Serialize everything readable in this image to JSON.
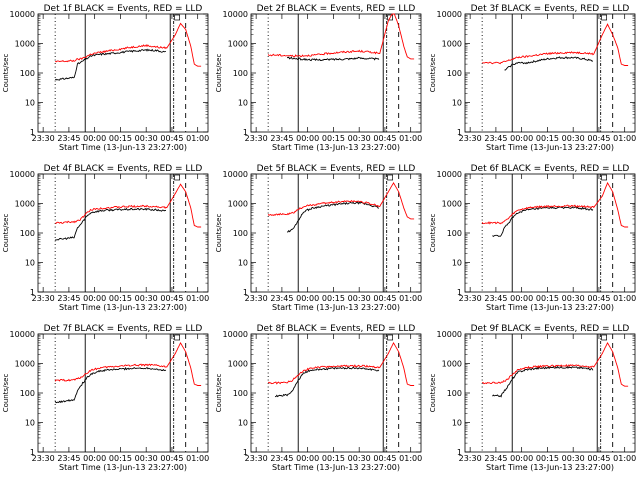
{
  "xlabel": "Start Time (13-Jun-13 23:27:00)",
  "ylabel": "Counts/sec",
  "x_ticks": [
    "23:30",
    "23:45",
    "00:00",
    "00:15",
    "00:30",
    "00:45",
    "01:00"
  ],
  "y_ticks": [
    "1",
    "10",
    "100",
    "1000",
    "10000"
  ],
  "colors": {
    "events": "#000000",
    "lld": "#ff0000"
  },
  "chart_data": [
    {
      "type": "line",
      "title": "Det 1f BLACK = Events, RED = LLD",
      "xlabel": "Start Time (13-Jun-13 23:27:00)",
      "ylabel": "Counts/sec",
      "y_scale": "log",
      "ylim": [
        1,
        10000
      ],
      "xlim": [
        "23:27",
        "01:06"
      ],
      "x": [
        "23:37",
        "23:41",
        "23:43",
        "23:48",
        "23:50",
        "23:52",
        "23:55",
        "23:58",
        "00:03",
        "00:08",
        "00:15",
        "00:22",
        "00:30",
        "00:36",
        "00:42",
        "00:47",
        "00:50",
        "00:53",
        "00:56",
        "00:58",
        "01:00",
        "01:02"
      ],
      "series": [
        {
          "name": "Events",
          "color": "#000000",
          "values": [
            60,
            62,
            65,
            70,
            200,
            230,
            300,
            380,
            430,
            450,
            500,
            550,
            600,
            580,
            500,
            null,
            null,
            null,
            null,
            null,
            null,
            null
          ]
        },
        {
          "name": "LLD",
          "color": "#ff0000",
          "values": [
            240,
            250,
            250,
            260,
            290,
            300,
            360,
            440,
            500,
            560,
            650,
            760,
            860,
            760,
            700,
            2000,
            4800,
            3000,
            800,
            200,
            170,
            170
          ]
        }
      ]
    },
    {
      "type": "line",
      "title": "Det 2f BLACK = Events, RED = LLD",
      "xlabel": "Start Time (13-Jun-13 23:27:00)",
      "ylabel": "Counts/sec",
      "y_scale": "log",
      "ylim": [
        1,
        10000
      ],
      "xlim": [
        "23:27",
        "01:06"
      ],
      "x": [
        "23:37",
        "23:41",
        "23:43",
        "23:48",
        "23:50",
        "23:52",
        "23:55",
        "23:58",
        "00:03",
        "00:08",
        "00:15",
        "00:22",
        "00:30",
        "00:36",
        "00:42",
        "00:47",
        "00:50",
        "00:53",
        "00:56",
        "00:58",
        "01:00",
        "01:02"
      ],
      "series": [
        {
          "name": "Events",
          "color": "#000000",
          "values": [
            null,
            null,
            null,
            330,
            320,
            310,
            300,
            290,
            280,
            280,
            290,
            300,
            320,
            310,
            290,
            null,
            null,
            null,
            null,
            null,
            null,
            null
          ]
        },
        {
          "name": "LLD",
          "color": "#ff0000",
          "values": [
            400,
            410,
            400,
            390,
            380,
            380,
            380,
            390,
            400,
            430,
            480,
            520,
            550,
            520,
            460,
            6000,
            12000,
            4000,
            800,
            350,
            300,
            300
          ]
        }
      ]
    },
    {
      "type": "line",
      "title": "Det 3f BLACK = Events, RED = LLD",
      "xlabel": "Start Time (13-Jun-13 23:27:00)",
      "ylabel": "Counts/sec",
      "y_scale": "log",
      "ylim": [
        1,
        10000
      ],
      "xlim": [
        "23:27",
        "01:06"
      ],
      "x": [
        "23:37",
        "23:41",
        "23:43",
        "23:48",
        "23:50",
        "23:52",
        "23:55",
        "23:58",
        "00:03",
        "00:08",
        "00:15",
        "00:22",
        "00:30",
        "00:36",
        "00:42",
        "00:47",
        "00:50",
        "00:53",
        "00:56",
        "00:58",
        "01:00",
        "01:02"
      ],
      "series": [
        {
          "name": "Events",
          "color": "#000000",
          "values": [
            null,
            null,
            null,
            null,
            120,
            150,
            200,
            220,
            220,
            250,
            300,
            330,
            330,
            300,
            250,
            null,
            null,
            null,
            null,
            null,
            null,
            null
          ]
        },
        {
          "name": "LLD",
          "color": "#ff0000",
          "values": [
            230,
            230,
            220,
            220,
            240,
            260,
            300,
            340,
            360,
            400,
            450,
            480,
            500,
            480,
            440,
            2000,
            4500,
            2000,
            700,
            200,
            180,
            180
          ]
        }
      ]
    },
    {
      "type": "line",
      "title": "Det 4f BLACK = Events, RED = LLD",
      "xlabel": "Start Time (13-Jun-13 23:27:00)",
      "ylabel": "Counts/sec",
      "y_scale": "log",
      "ylim": [
        1,
        10000
      ],
      "xlim": [
        "23:27",
        "01:06"
      ],
      "x": [
        "23:37",
        "23:41",
        "23:43",
        "23:48",
        "23:50",
        "23:52",
        "23:55",
        "23:58",
        "00:03",
        "00:08",
        "00:15",
        "00:22",
        "00:30",
        "00:36",
        "00:42",
        "00:47",
        "00:50",
        "00:53",
        "00:56",
        "00:58",
        "01:00",
        "01:02"
      ],
      "series": [
        {
          "name": "Events",
          "color": "#000000",
          "values": [
            60,
            62,
            65,
            70,
            150,
            200,
            350,
            500,
            560,
            600,
            620,
            640,
            640,
            600,
            550,
            null,
            null,
            null,
            null,
            null,
            null,
            null
          ]
        },
        {
          "name": "LLD",
          "color": "#ff0000",
          "values": [
            220,
            220,
            230,
            240,
            260,
            300,
            450,
            620,
            680,
            720,
            760,
            800,
            820,
            780,
            720,
            2200,
            4500,
            2500,
            700,
            180,
            160,
            160
          ]
        }
      ]
    },
    {
      "type": "line",
      "title": "Det 5f BLACK = Events, RED = LLD",
      "xlabel": "Start Time (13-Jun-13 23:27:00)",
      "ylabel": "Counts/sec",
      "y_scale": "log",
      "ylim": [
        1,
        10000
      ],
      "xlim": [
        "23:27",
        "01:06"
      ],
      "x": [
        "23:37",
        "23:41",
        "23:43",
        "23:48",
        "23:50",
        "23:52",
        "23:55",
        "23:58",
        "00:03",
        "00:08",
        "00:15",
        "00:22",
        "00:30",
        "00:36",
        "00:42",
        "00:47",
        "00:50",
        "00:53",
        "00:56",
        "00:58",
        "01:00",
        "01:02"
      ],
      "series": [
        {
          "name": "Events",
          "color": "#000000",
          "values": [
            null,
            null,
            null,
            110,
            120,
            150,
            300,
            550,
            700,
            800,
            900,
            1000,
            1050,
            900,
            700,
            null,
            null,
            null,
            null,
            null,
            null,
            null
          ]
        },
        {
          "name": "LLD",
          "color": "#ff0000",
          "values": [
            420,
            420,
            430,
            430,
            450,
            500,
            650,
            800,
            900,
            1000,
            1100,
            1200,
            1200,
            1000,
            800,
            2500,
            5000,
            2500,
            700,
            350,
            300,
            300
          ]
        }
      ]
    },
    {
      "type": "line",
      "title": "Det 6f BLACK = Events, RED = LLD",
      "xlabel": "Start Time (13-Jun-13 23:27:00)",
      "ylabel": "Counts/sec",
      "y_scale": "log",
      "ylim": [
        1,
        10000
      ],
      "xlim": [
        "23:27",
        "01:06"
      ],
      "x": [
        "23:37",
        "23:41",
        "23:43",
        "23:48",
        "23:50",
        "23:52",
        "23:55",
        "23:58",
        "00:03",
        "00:08",
        "00:15",
        "00:22",
        "00:30",
        "00:36",
        "00:42",
        "00:47",
        "00:50",
        "00:53",
        "00:56",
        "00:58",
        "01:00",
        "01:02"
      ],
      "series": [
        {
          "name": "Events",
          "color": "#000000",
          "values": [
            null,
            null,
            80,
            80,
            150,
            200,
            350,
            500,
            600,
            650,
            700,
            720,
            720,
            680,
            600,
            null,
            null,
            null,
            null,
            null,
            null,
            null
          ]
        },
        {
          "name": "LLD",
          "color": "#ff0000",
          "values": [
            220,
            220,
            220,
            220,
            250,
            300,
            450,
            600,
            700,
            760,
            800,
            820,
            830,
            800,
            740,
            1800,
            5000,
            2500,
            600,
            180,
            160,
            160
          ]
        }
      ]
    },
    {
      "type": "line",
      "title": "Det 7f BLACK = Events, RED = LLD",
      "xlabel": "Start Time (13-Jun-13 23:27:00)",
      "ylabel": "Counts/sec",
      "y_scale": "log",
      "ylim": [
        1,
        10000
      ],
      "xlim": [
        "23:27",
        "01:06"
      ],
      "x": [
        "23:37",
        "23:41",
        "23:43",
        "23:48",
        "23:50",
        "23:52",
        "23:55",
        "23:58",
        "00:03",
        "00:08",
        "00:15",
        "00:22",
        "00:30",
        "00:36",
        "00:42",
        "00:47",
        "00:50",
        "00:53",
        "00:56",
        "00:58",
        "01:00",
        "01:02"
      ],
      "series": [
        {
          "name": "Events",
          "color": "#000000",
          "values": [
            50,
            50,
            55,
            60,
            120,
            180,
            300,
            450,
            550,
            600,
            650,
            680,
            700,
            650,
            550,
            null,
            null,
            null,
            null,
            null,
            null,
            null
          ]
        },
        {
          "name": "LLD",
          "color": "#ff0000",
          "values": [
            260,
            270,
            270,
            280,
            300,
            340,
            450,
            600,
            700,
            760,
            820,
            880,
            900,
            850,
            760,
            2200,
            5000,
            2500,
            700,
            200,
            180,
            180
          ]
        }
      ]
    },
    {
      "type": "line",
      "title": "Det 8f BLACK = Events, RED = LLD",
      "xlabel": "Start Time (13-Jun-13 23:27:00)",
      "ylabel": "Counts/sec",
      "y_scale": "log",
      "ylim": [
        1,
        10000
      ],
      "xlim": [
        "23:27",
        "01:06"
      ],
      "x": [
        "23:37",
        "23:41",
        "23:43",
        "23:48",
        "23:50",
        "23:52",
        "23:55",
        "23:58",
        "00:03",
        "00:08",
        "00:15",
        "00:22",
        "00:30",
        "00:36",
        "00:42",
        "00:47",
        "00:50",
        "00:53",
        "00:56",
        "00:58",
        "01:00",
        "01:02"
      ],
      "series": [
        {
          "name": "Events",
          "color": "#000000",
          "values": [
            null,
            80,
            80,
            85,
            100,
            150,
            300,
            500,
            600,
            650,
            680,
            700,
            700,
            650,
            550,
            null,
            null,
            null,
            null,
            null,
            null,
            null
          ]
        },
        {
          "name": "LLD",
          "color": "#ff0000",
          "values": [
            220,
            220,
            220,
            230,
            250,
            300,
            450,
            600,
            700,
            760,
            800,
            820,
            830,
            800,
            740,
            2200,
            5000,
            2500,
            700,
            200,
            180,
            180
          ]
        }
      ]
    },
    {
      "type": "line",
      "title": "Det 9f BLACK = Events, RED = LLD",
      "xlabel": "Start Time (13-Jun-13 23:27:00)",
      "ylabel": "Counts/sec",
      "y_scale": "log",
      "ylim": [
        1,
        10000
      ],
      "xlim": [
        "23:27",
        "01:06"
      ],
      "x": [
        "23:37",
        "23:41",
        "23:43",
        "23:48",
        "23:50",
        "23:52",
        "23:55",
        "23:58",
        "00:03",
        "00:08",
        "00:15",
        "00:22",
        "00:30",
        "00:36",
        "00:42",
        "00:47",
        "00:50",
        "00:53",
        "00:56",
        "00:58",
        "01:00",
        "01:02"
      ],
      "series": [
        {
          "name": "Events",
          "color": "#000000",
          "values": [
            null,
            null,
            80,
            80,
            120,
            170,
            320,
            520,
            620,
            680,
            720,
            740,
            740,
            700,
            620,
            null,
            null,
            null,
            null,
            null,
            null,
            null
          ]
        },
        {
          "name": "LLD",
          "color": "#ff0000",
          "values": [
            220,
            220,
            220,
            230,
            250,
            300,
            450,
            620,
            720,
            780,
            820,
            840,
            850,
            820,
            760,
            2200,
            5000,
            2500,
            700,
            200,
            170,
            170
          ]
        }
      ]
    }
  ]
}
